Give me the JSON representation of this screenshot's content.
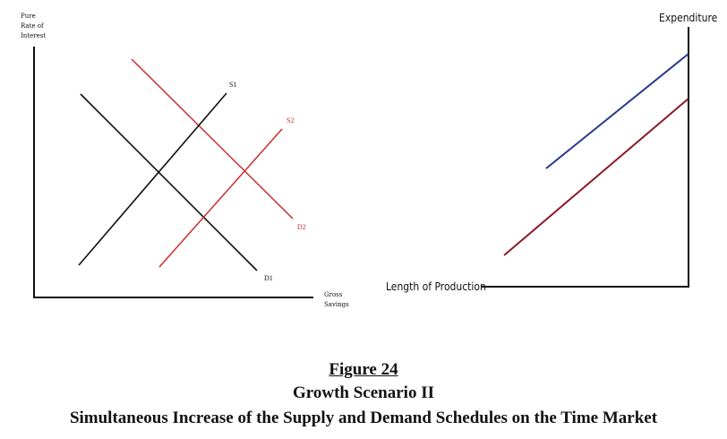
{
  "left_diagram": {
    "y_axis_label": [
      "Pure",
      "Rate of",
      "Interest"
    ],
    "x_axis_label": [
      "Gross",
      "Savings"
    ],
    "curves": [
      {
        "label": "S1",
        "color": "#000000"
      },
      {
        "label": "S2",
        "color": "#cc2222"
      },
      {
        "label": "D1",
        "color": "#000000"
      },
      {
        "label": "D2",
        "color": "#cc2222"
      }
    ]
  },
  "right_diagram": {
    "y_axis_label": "Expenditure",
    "x_axis_label": "Length of Production",
    "lines": [
      {
        "color": "#2b3a8c"
      },
      {
        "color": "#8a1a2a"
      }
    ]
  },
  "caption": {
    "figure": "Figure 24",
    "subtitle": "Growth Scenario II",
    "title": "Simultaneous Increase of the Supply and Demand Schedules on the Time Market"
  }
}
